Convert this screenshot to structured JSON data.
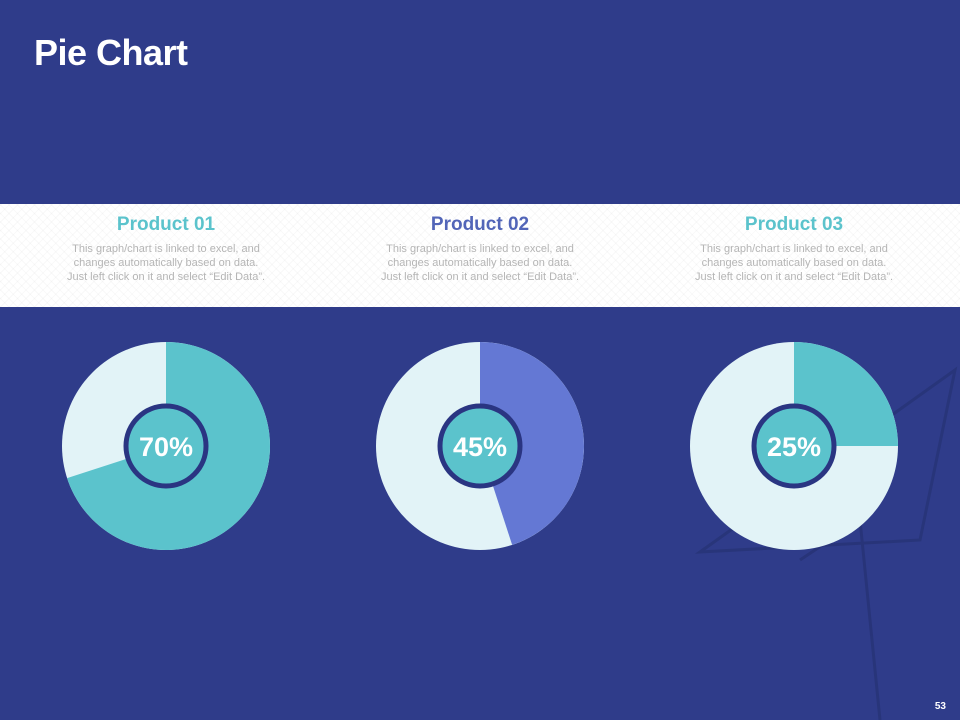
{
  "slide": {
    "title": "Pie Chart",
    "page_number": "53"
  },
  "colors": {
    "background": "#2f3c8a",
    "slice_remainder": "#e2f3f7",
    "center_border": "#2a3582"
  },
  "chart_data": [
    {
      "type": "pie",
      "title": "Product 01",
      "description": "This graph/chart is linked to excel, and changes automatically based on data. Just left click on it and select “Edit Data”.",
      "label": "70%",
      "value": 70,
      "color": "#5bc3cc",
      "title_color": "#5bc3cc"
    },
    {
      "type": "pie",
      "title": "Product 02",
      "description": "This graph/chart is linked to excel, and changes automatically based on data. Just left click on it and select “Edit Data”.",
      "label": "45%",
      "value": 45,
      "color": "#6478d4",
      "title_color": "#5265b8"
    },
    {
      "type": "pie",
      "title": "Product 03",
      "description": "This graph/chart is linked to excel, and changes automatically based on data. Just left click on it and select “Edit Data”.",
      "label": "25%",
      "value": 25,
      "color": "#5bc3cc",
      "title_color": "#5bc3cc"
    }
  ]
}
